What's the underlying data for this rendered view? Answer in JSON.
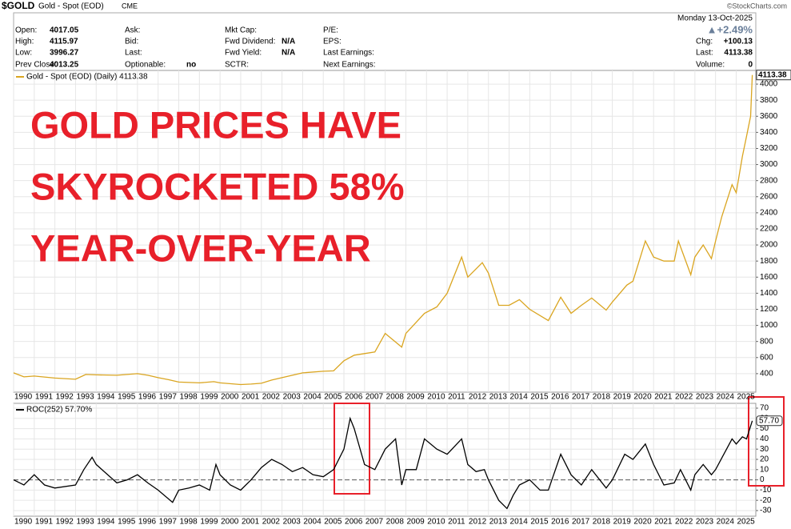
{
  "header": {
    "symbol": "$GOLD",
    "name": "Gold - Spot (EOD)",
    "exchange": "CME",
    "credit": "©StockCharts.com",
    "date": "Monday  13-Oct-2025",
    "columns": [
      [
        {
          "label": "Open:",
          "value": "4017.05"
        },
        {
          "label": "High:",
          "value": "4115.97"
        },
        {
          "label": "Low:",
          "value": "3996.27"
        },
        {
          "label": "Prev Close:",
          "value": "4013.25"
        }
      ],
      [
        {
          "label": "Ask:",
          "value": ""
        },
        {
          "label": "Bid:",
          "value": ""
        },
        {
          "label": "Last:",
          "value": ""
        },
        {
          "label": "Optionable:",
          "value": "no"
        }
      ],
      [
        {
          "label": "Mkt Cap:",
          "value": ""
        },
        {
          "label": "Fwd Dividend:",
          "value": "N/A"
        },
        {
          "label": "Fwd Yield:",
          "value": "N/A"
        },
        {
          "label": "SCTR:",
          "value": ""
        }
      ],
      [
        {
          "label": "P/E:",
          "value": ""
        },
        {
          "label": "EPS:",
          "value": ""
        },
        {
          "label": "Last Earnings:",
          "value": ""
        },
        {
          "label": "Next Earnings:",
          "value": ""
        }
      ]
    ],
    "right": [
      {
        "label": "",
        "value": "▲+2.49%"
      },
      {
        "label": "Chg:",
        "value": "+100.13"
      },
      {
        "label": "Last:",
        "value": "4113.38"
      },
      {
        "label": "Volume:",
        "value": "0"
      }
    ]
  },
  "chart_data": [
    {
      "type": "line",
      "legend": "Gold - Spot (EOD) (Daily) 4113.38",
      "annotation": [
        "GOLD PRICES HAVE",
        "SKYROCKETED 58%",
        "YEAR-OVER-YEAR"
      ],
      "x": [
        1990,
        1990.5,
        1991,
        1992,
        1993,
        1993.5,
        1994,
        1995,
        1996,
        1996.5,
        1997,
        1997.5,
        1998,
        1999,
        1999.7,
        2000,
        2001,
        2001.5,
        2002,
        2002.5,
        2003,
        2004,
        2005,
        2005.5,
        2006,
        2006.5,
        2007,
        2007.5,
        2008,
        2008.8,
        2009,
        2009.9,
        2010.5,
        2011,
        2011.7,
        2012,
        2012.7,
        2013,
        2013.5,
        2014,
        2014.5,
        2015,
        2015.9,
        2016.5,
        2017,
        2017.5,
        2018,
        2018.7,
        2019,
        2019.7,
        2020,
        2020.6,
        2021,
        2021.5,
        2022,
        2022.2,
        2022.8,
        2023,
        2023.4,
        2023.8,
        2024,
        2024.3,
        2024.8,
        2025,
        2025.3,
        2025.5,
        2025.7,
        2025.78
      ],
      "series": [
        {
          "name": "Gold - Spot (EOD)",
          "color": "#daa520",
          "values": [
            410,
            360,
            370,
            345,
            330,
            390,
            385,
            380,
            400,
            380,
            350,
            325,
            295,
            285,
            300,
            285,
            265,
            270,
            280,
            320,
            350,
            410,
            430,
            435,
            560,
            630,
            650,
            670,
            900,
            730,
            900,
            1150,
            1230,
            1400,
            1850,
            1600,
            1780,
            1650,
            1250,
            1250,
            1320,
            1200,
            1060,
            1350,
            1150,
            1250,
            1340,
            1190,
            1290,
            1500,
            1550,
            2050,
            1850,
            1800,
            1800,
            2050,
            1630,
            1850,
            2000,
            1830,
            2050,
            2350,
            2750,
            2650,
            3100,
            3350,
            3600,
            4113.38
          ]
        }
      ],
      "xlim": [
        1990,
        2025.95
      ],
      "xticks": [
        1990,
        1991,
        1992,
        1993,
        1994,
        1995,
        1996,
        1997,
        1998,
        1999,
        2000,
        2001,
        2002,
        2003,
        2004,
        2005,
        2006,
        2007,
        2008,
        2009,
        2010,
        2011,
        2012,
        2013,
        2014,
        2015,
        2016,
        2017,
        2018,
        2019,
        2020,
        2021,
        2022,
        2023,
        2024,
        2025
      ],
      "ylim": [
        170,
        4170
      ],
      "yticks": [
        400,
        600,
        800,
        1000,
        1200,
        1400,
        1600,
        1800,
        2000,
        2200,
        2400,
        2600,
        2800,
        3000,
        3200,
        3400,
        3600,
        3800,
        4000
      ],
      "grid": true
    },
    {
      "type": "line",
      "legend": "ROC(252) 57.70%",
      "last_value_label": "57.70",
      "x": [
        1990,
        1990.5,
        1991,
        1991.5,
        1992,
        1993,
        1993.4,
        1993.8,
        1994,
        1995,
        1995.5,
        1996,
        1996.5,
        1997,
        1997.7,
        1998,
        1998.5,
        1999,
        1999.5,
        1999.8,
        2000,
        2000.5,
        2001,
        2001.5,
        2002,
        2002.5,
        2003,
        2003.5,
        2004,
        2004.5,
        2005,
        2005.5,
        2006,
        2006.3,
        2006.5,
        2007,
        2007.5,
        2008,
        2008.5,
        2008.8,
        2009,
        2009.5,
        2009.9,
        2010.5,
        2011,
        2011.7,
        2012,
        2012.4,
        2012.8,
        2013,
        2013.5,
        2013.9,
        2014.2,
        2014.5,
        2015,
        2015.5,
        2015.9,
        2016.5,
        2017,
        2017.5,
        2018,
        2018.7,
        2019,
        2019.6,
        2020,
        2020.6,
        2021,
        2021.5,
        2022,
        2022.3,
        2022.8,
        2023,
        2023.4,
        2023.8,
        2024,
        2024.4,
        2024.8,
        2025,
        2025.3,
        2025.5,
        2025.78
      ],
      "series": [
        {
          "name": "ROC(252)",
          "color": "#000000",
          "values": [
            0,
            -5,
            5,
            -5,
            -8,
            -5,
            10,
            22,
            15,
            -3,
            0,
            5,
            -3,
            -10,
            -22,
            -10,
            -8,
            -5,
            -10,
            15,
            5,
            -5,
            -10,
            0,
            12,
            20,
            15,
            8,
            12,
            5,
            3,
            10,
            30,
            60,
            50,
            15,
            10,
            30,
            40,
            -5,
            10,
            10,
            40,
            30,
            25,
            40,
            15,
            8,
            10,
            0,
            -20,
            -28,
            -15,
            -5,
            0,
            -10,
            -10,
            25,
            5,
            -5,
            10,
            -8,
            0,
            25,
            20,
            35,
            15,
            -5,
            -3,
            10,
            -10,
            5,
            15,
            5,
            10,
            25,
            40,
            35,
            42,
            40,
            57.7
          ]
        }
      ],
      "xlim": [
        1990,
        2025.95
      ],
      "xticks": [
        1990,
        1991,
        1992,
        1993,
        1994,
        1995,
        1996,
        1997,
        1998,
        1999,
        2000,
        2001,
        2002,
        2003,
        2004,
        2005,
        2006,
        2007,
        2008,
        2009,
        2010,
        2011,
        2012,
        2013,
        2014,
        2015,
        2016,
        2017,
        2018,
        2019,
        2020,
        2021,
        2022,
        2023,
        2024,
        2025
      ],
      "ylim": [
        -35.5,
        74.7
      ],
      "yticks": [
        -30,
        -20,
        -10,
        0,
        10,
        20,
        30,
        40,
        50,
        60,
        70
      ],
      "grid": true
    }
  ]
}
